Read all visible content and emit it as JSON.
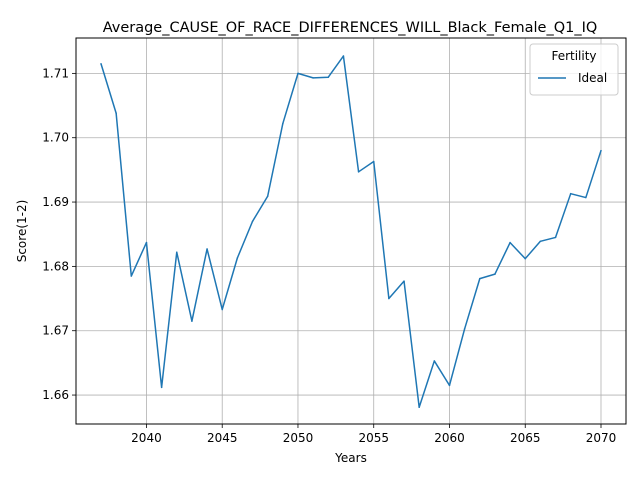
{
  "chart_data": {
    "type": "line",
    "title": "Average_CAUSE_OF_RACE_DIFFERENCES_WILL_Black_Female_Q1_IQ",
    "xlabel": "Years",
    "ylabel": "Score(1-2)",
    "xlim": [
      2035.35,
      2071.65
    ],
    "ylim": [
      1.6555,
      1.7155
    ],
    "xticks": [
      2040,
      2045,
      2050,
      2055,
      2060,
      2065,
      2070
    ],
    "yticks": [
      1.66,
      1.67,
      1.68,
      1.69,
      1.7,
      1.71
    ],
    "ytick_labels": [
      "1.66",
      "1.67",
      "1.68",
      "1.69",
      "1.70",
      "1.71"
    ],
    "grid": true,
    "legend": {
      "title": "Fertility",
      "placement": "top-right"
    },
    "series": [
      {
        "name": "Ideal",
        "color": "#1f77b4",
        "x": [
          2037,
          2038,
          2039,
          2040,
          2041,
          2042,
          2043,
          2044,
          2045,
          2046,
          2047,
          2048,
          2049,
          2050,
          2051,
          2052,
          2053,
          2054,
          2055,
          2056,
          2057,
          2058,
          2059,
          2060,
          2061,
          2062,
          2063,
          2064,
          2065,
          2066,
          2067,
          2068,
          2069,
          2070
        ],
        "values": [
          1.7115,
          1.7038,
          1.6785,
          1.6837,
          1.6612,
          1.6822,
          1.6715,
          1.6827,
          1.6733,
          1.6813,
          1.687,
          1.6909,
          1.7022,
          1.71,
          1.7093,
          1.7094,
          1.7127,
          1.6947,
          1.6963,
          1.675,
          1.6777,
          1.6581,
          1.6653,
          1.6615,
          1.6703,
          1.6781,
          1.6788,
          1.6837,
          1.6812,
          1.6839,
          1.6845,
          1.6913,
          1.6907,
          1.698
        ]
      }
    ]
  }
}
